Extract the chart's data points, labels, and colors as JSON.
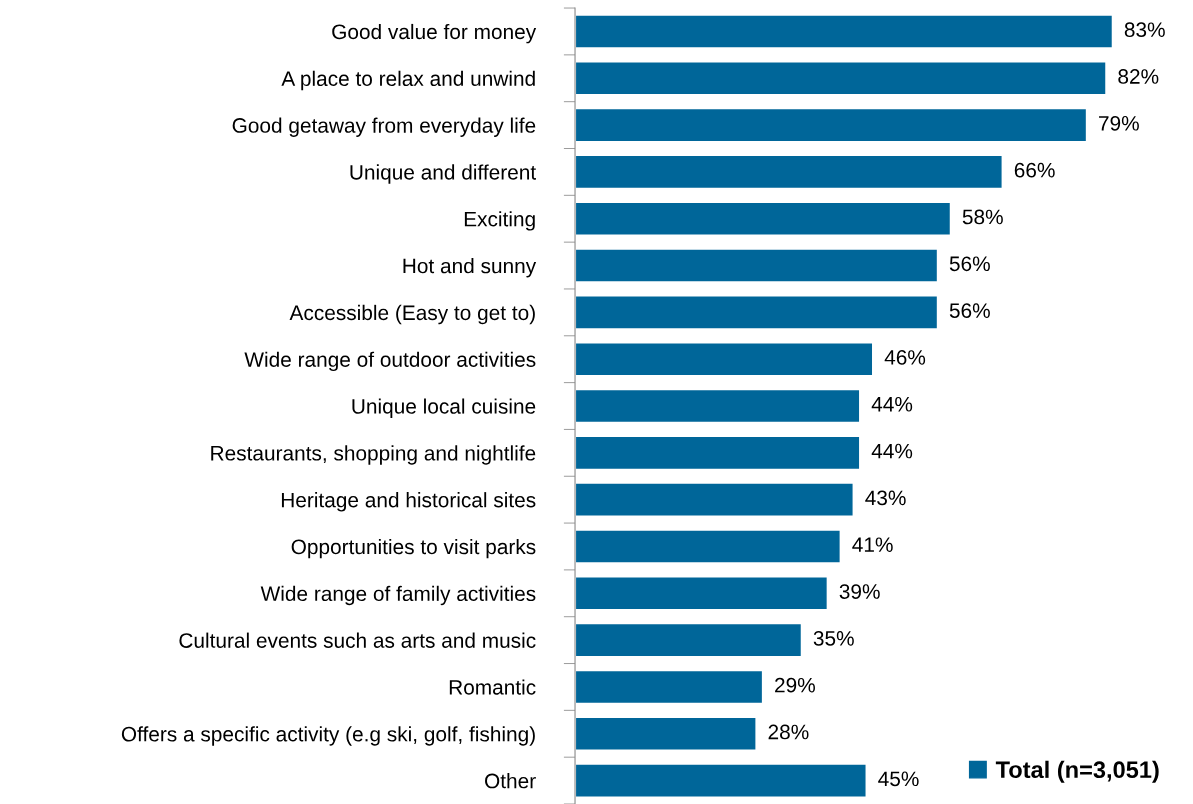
{
  "chart_data": {
    "type": "bar",
    "orientation": "horizontal",
    "categories": [
      "Good value for money",
      "A place to relax and unwind",
      "Good getaway from everyday life",
      "Unique and different",
      "Exciting",
      "Hot and sunny",
      "Accessible (Easy to get to)",
      "Wide range of outdoor activities",
      "Unique local cuisine",
      "Restaurants, shopping and nightlife",
      "Heritage and historical sites",
      "Opportunities to visit parks",
      "Wide range of family activities",
      "Cultural events such as arts and music",
      "Romantic",
      "Offers a specific activity (e.g ski, golf, fishing)",
      "Other"
    ],
    "series": [
      {
        "name": "Total (n=3,051)",
        "color": "#006699",
        "values": [
          83,
          82,
          79,
          66,
          58,
          56,
          56,
          46,
          44,
          44,
          43,
          41,
          39,
          35,
          29,
          28,
          45
        ],
        "value_labels": [
          "83%",
          "82%",
          "79%",
          "66%",
          "58%",
          "56%",
          "56%",
          "46%",
          "44%",
          "44%",
          "43%",
          "41%",
          "39%",
          "35%",
          "29%",
          "28%",
          "45%"
        ]
      }
    ],
    "legend": "bottom right"
  }
}
